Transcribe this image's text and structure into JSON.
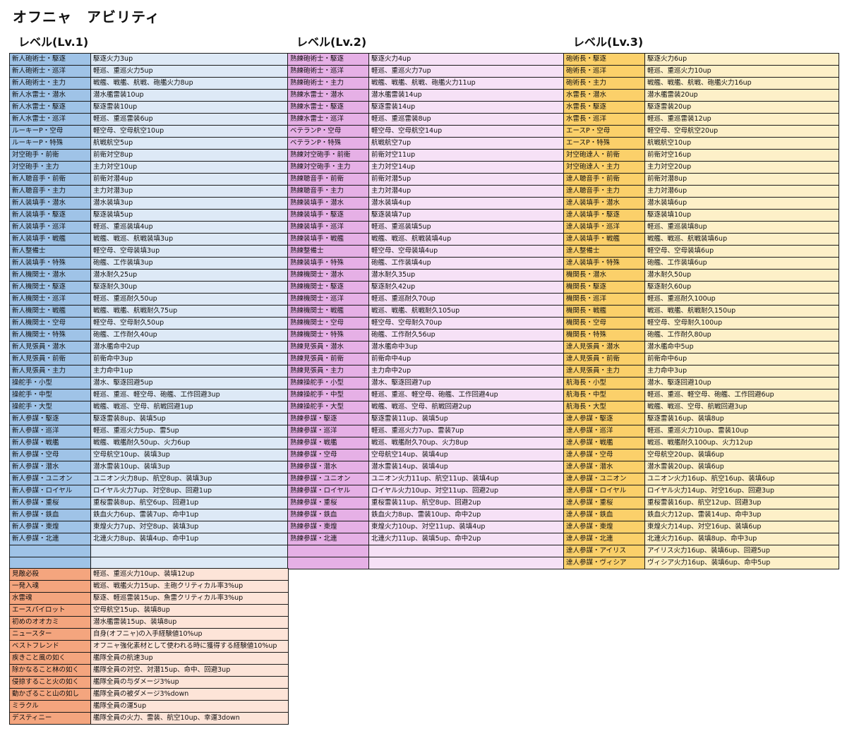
{
  "title": "オフニャ　アビリティ",
  "levels": [
    {
      "heading": "レベル(Lv.1)",
      "rows": [
        [
          "新人砲術士・駆逐",
          "駆逐火力3up"
        ],
        [
          "新人砲術士・巡洋",
          "軽巡、重巡火力5up"
        ],
        [
          "新人砲術士・主力",
          "戦艦、戦艦、航戦、砲艦火力8up"
        ],
        [
          "新人水雷士・潜水",
          "潜水艦雷装10up"
        ],
        [
          "新人水雷士・駆逐",
          "駆逐雷装10up"
        ],
        [
          "新人水雷士・巡洋",
          "軽巡、重巡雷装6up"
        ],
        [
          "ルーキーP・空母",
          "軽空母、空母航空10up"
        ],
        [
          "ルーキーP・特殊",
          "航戦航空5up"
        ],
        [
          "対空砲手・前衛",
          "前衛対空8up"
        ],
        [
          "対空砲手・主力",
          "主力対空10up"
        ],
        [
          "新人聴音手・前衛",
          "前衛対潜4up"
        ],
        [
          "新人聴音手・主力",
          "主力対潜3up"
        ],
        [
          "新人装填手・潜水",
          "潜水装填3up"
        ],
        [
          "新人装填手・駆逐",
          "駆逐装填5up"
        ],
        [
          "新人装填手・巡洋",
          "軽巡、重巡装填4up"
        ],
        [
          "新人装填手・戦艦",
          "戦艦、戦巡、航戦装填3up"
        ],
        [
          "新人整備士",
          "軽空母、空母装填3up"
        ],
        [
          "新人装填手・特殊",
          "砲艦、工作装填3up"
        ],
        [
          "新人機関士・潜水",
          "潜水耐久25up"
        ],
        [
          "新人機関士・駆逐",
          "駆逐耐久30up"
        ],
        [
          "新人機関士・巡洋",
          "軽巡、重巡耐久50up"
        ],
        [
          "新人機関士・戦艦",
          "戦艦、戦艦、航戦耐久75up"
        ],
        [
          "新人機関士・空母",
          "軽空母、空母耐久50up"
        ],
        [
          "新人機関士・特殊",
          "砲艦、工作耐久40up"
        ],
        [
          "新人見張員・潜水",
          "潜水艦命中2up"
        ],
        [
          "新人見張員・前衛",
          "前衛命中3up"
        ],
        [
          "新人見張員・主力",
          "主力命中1up"
        ],
        [
          "操舵手・小型",
          "潜水、駆逐回避5up"
        ],
        [
          "操舵手・中型",
          "軽巡、重巡、軽空母、砲艦、工作回避3up"
        ],
        [
          "操舵手・大型",
          "戦艦、戦巡、空母、航戦回避1up"
        ],
        [
          "新人参謀・駆逐",
          "駆逐雷装8up、装填5up"
        ],
        [
          "新人参謀・巡洋",
          "軽巡、重巡火力5up、雷5up"
        ],
        [
          "新人参謀・戦艦",
          "戦艦、戦艦耐久50up、火力6up"
        ],
        [
          "新人参謀・空母",
          "空母航空10up、装填3up"
        ],
        [
          "新人参謀・潜水",
          "潜水雷装10up、装填3up"
        ],
        [
          "新人参謀・ユニオン",
          "ユニオン火力8up、航空8up、装填3up"
        ],
        [
          "新人参謀・ロイヤル",
          "ロイヤル火力7up、対空8up、回避1up"
        ],
        [
          "新人参謀・重桜",
          "重桜雷装8up、航空6up、回避1up"
        ],
        [
          "新人参謀・鉄血",
          "鉄血火力6up、雷装7up、命中1up"
        ],
        [
          "新人参謀・東煌",
          "東煌火力7up、対空8up、装填3up"
        ],
        [
          "新人参謀・北連",
          "北連火力8up、装填4up、命中1up"
        ],
        [
          "",
          ""
        ],
        [
          "",
          ""
        ]
      ]
    },
    {
      "heading": "レベル(Lv.2)",
      "rows": [
        [
          "熟練砲術士・駆逐",
          "駆逐火力4up"
        ],
        [
          "熟練砲術士・巡洋",
          "軽巡、重巡火力7up"
        ],
        [
          "熟練砲術士・主力",
          "戦艦、戦艦、航戦、砲艦火力11up"
        ],
        [
          "熟練水雷士・潜水",
          "潜水艦雷装14up"
        ],
        [
          "熟練水雷士・駆逐",
          "駆逐雷装14up"
        ],
        [
          "熟練水雷士・巡洋",
          "軽巡、重巡雷装8up"
        ],
        [
          "ベテランP・空母",
          "軽空母、空母航空14up"
        ],
        [
          "ベテランP・特殊",
          "航戦航空7up"
        ],
        [
          "熟練対空砲手・前衛",
          "前衛対空11up"
        ],
        [
          "熟練対空砲手・主力",
          "主力対空14up"
        ],
        [
          "熟練聴音手・前衛",
          "前衛対潜5up"
        ],
        [
          "熟練聴音手・主力",
          "主力対潜4up"
        ],
        [
          "熟練装填手・潜水",
          "潜水装填4up"
        ],
        [
          "熟練装填手・駆逐",
          "駆逐装填7up"
        ],
        [
          "熟練装填手・巡洋",
          "軽巡、重巡装填5up"
        ],
        [
          "熟練装填手・戦艦",
          "戦艦、戦巡、航戦装填4up"
        ],
        [
          "熟練整備士",
          "軽空母、空母装填4up"
        ],
        [
          "熟練装填手・特殊",
          "砲艦、工作装填4up"
        ],
        [
          "熟練機関士・潜水",
          "潜水耐久35up"
        ],
        [
          "熟練機関士・駆逐",
          "駆逐耐久42up"
        ],
        [
          "熟練機関士・巡洋",
          "軽巡、重巡耐久70up"
        ],
        [
          "熟練機関士・戦艦",
          "戦巡、戦艦、航戦耐久105up"
        ],
        [
          "熟練機関士・空母",
          "軽空母、空母耐久70up"
        ],
        [
          "熟練機関士・特殊",
          "砲艦、工作耐久56up"
        ],
        [
          "熟練見張員・潜水",
          "潜水艦命中3up"
        ],
        [
          "熟練見張員・前衛",
          "前衛命中4up"
        ],
        [
          "熟練見張員・主力",
          "主力命中2up"
        ],
        [
          "熟練操舵手・小型",
          "潜水、駆逐回避7up"
        ],
        [
          "熟練操舵手・中型",
          "軽巡、重巡、軽空母、砲艦、工作回避4up"
        ],
        [
          "熟練操舵手・大型",
          "戦艦、戦巡、空母、航戦回避2up"
        ],
        [
          "熟練参謀・駆逐",
          "駆逐雷装11up、装填5up"
        ],
        [
          "熟練参謀・巡洋",
          "軽巡、重巡火力7up、雷装7up"
        ],
        [
          "熟練参謀・戦艦",
          "戦巡、戦艦耐久70up、火力8up"
        ],
        [
          "熟練参謀・空母",
          "空母航空14up、装填4up"
        ],
        [
          "熟練参謀・潜水",
          "潜水雷装14up、装填4up"
        ],
        [
          "熟練参謀・ユニオン",
          "ユニオン火力11up、航空11up、装填4up"
        ],
        [
          "熟練参謀・ロイヤル",
          "ロイヤル火力10up、対空11up、回避2up"
        ],
        [
          "熟練参謀・重桜",
          "重桜雷装11up、航空8up、回避2up"
        ],
        [
          "熟練参謀・鉄血",
          "鉄血火力8up、雷装10up、命中2up"
        ],
        [
          "熟練参謀・東煌",
          "東煌火力10up、対空11up、装填4up"
        ],
        [
          "熟練参謀・北連",
          "北連火力11up、装填5up、命中2up"
        ],
        [
          "",
          ""
        ],
        [
          "",
          ""
        ]
      ]
    },
    {
      "heading": "レベル(Lv.3)",
      "rows": [
        [
          "砲術長・駆逐",
          "駆逐火力6up"
        ],
        [
          "砲術長・巡洋",
          "軽巡、重巡火力10up"
        ],
        [
          "砲術長・主力",
          "戦艦、戦艦、航戦、砲艦火力16up"
        ],
        [
          "水雷長・潜水",
          "潜水艦雷装20up"
        ],
        [
          "水雷長・駆逐",
          "駆逐雷装20up"
        ],
        [
          "水雷長・巡洋",
          "軽巡、重巡雷装12up"
        ],
        [
          "エースP・空母",
          "軽空母、空母航空20up"
        ],
        [
          "エースP・特殊",
          "航戦航空10up"
        ],
        [
          "対空砲達人・前衛",
          "前衛対空16up"
        ],
        [
          "対空砲達人・主力",
          "主力対空20up"
        ],
        [
          "達人聴音手・前衛",
          "前衛対潜8up"
        ],
        [
          "達人聴音手・主力",
          "主力対潜6up"
        ],
        [
          "達人装填手・潜水",
          "潜水装填6up"
        ],
        [
          "達人装填手・駆逐",
          "駆逐装填10up"
        ],
        [
          "達人装填手・巡洋",
          "軽巡、重巡装填8up"
        ],
        [
          "達人装填手・戦艦",
          "戦艦、戦巡、航戦装填6up"
        ],
        [
          "達人整備士",
          "軽空母、空母装填6up"
        ],
        [
          "達人装填手・特殊",
          "砲艦、工作装填6up"
        ],
        [
          "機関長・潜水",
          "潜水耐久50up"
        ],
        [
          "機関長・駆逐",
          "駆逐耐久60up"
        ],
        [
          "機関長・巡洋",
          "軽巡、重巡耐久100up"
        ],
        [
          "機関長・戦艦",
          "戦巡、戦艦、航戦耐久150up"
        ],
        [
          "機関長・空母",
          "軽空母、空母耐久100up"
        ],
        [
          "機関長・特殊",
          "砲艦、工作耐久80up"
        ],
        [
          "達人見張員・潜水",
          "潜水艦命中5up"
        ],
        [
          "達人見張員・前衛",
          "前衛命中6up"
        ],
        [
          "達人見張員・主力",
          "主力命中3up"
        ],
        [
          "航海長・小型",
          "潜水、駆逐回避10up"
        ],
        [
          "航海長・中型",
          "軽巡、重巡、軽空母、砲艦、工作回避6up"
        ],
        [
          "航海長・大型",
          "戦艦、戦巡、空母、航戦回避3up"
        ],
        [
          "達人参謀・駆逐",
          "駆逐雷装16up、装填8up"
        ],
        [
          "達人参謀・巡洋",
          "軽巡、重巡火力10up、雷装10up"
        ],
        [
          "達人参謀・戦艦",
          "戦巡、戦艦耐久100up、火力12up"
        ],
        [
          "達人参謀・空母",
          "空母航空20up、装填6up"
        ],
        [
          "達人参謀・潜水",
          "潜水雷装20up、装填6up"
        ],
        [
          "達人参謀・ユニオン",
          "ユニオン火力16up、航空16up、装填6up"
        ],
        [
          "達人参謀・ロイヤル",
          "ロイヤル火力14up、対空16up、回避3up"
        ],
        [
          "達人参謀・重桜",
          "重桜雷装16up、航空12up、回避3up"
        ],
        [
          "達人参謀・鉄血",
          "鉄血火力12up、雷装14up、命中3up"
        ],
        [
          "達人参謀・東煌",
          "東煌火力14up、対空16up、装填6up"
        ],
        [
          "達人参謀・北連",
          "北連火力16up、装填8up、命中3up"
        ],
        [
          "達人参謀・アイリス",
          "アイリス火力16up、装填6up、回避5up"
        ],
        [
          "達人参謀・ヴィシア",
          "ヴィシア火力16up、装填6up、命中5up"
        ]
      ]
    }
  ],
  "special": [
    [
      "見敵必殺",
      "軽巡、重巡火力10up、装填12up"
    ],
    [
      "一発入魂",
      "戦巡、戦艦火力15up、主砲クリティカル率3%up"
    ],
    [
      "水雷魂",
      "駆逐、軽巡雷装15up、魚雷クリティカル率3%up"
    ],
    [
      "エースパイロット",
      "空母航空15up、装填8up"
    ],
    [
      "初めのオオカミ",
      "潜水艦雷装15up、装填8up"
    ],
    [
      "ニュースター",
      "自身(オフニャ)の入手経験値10%up"
    ],
    [
      "ベストフレンド",
      "オフニャ強化素材として使われる時に獲得する経験値10%up"
    ],
    [
      "疾きこと風の如く",
      "艦隊全員の航速3up"
    ],
    [
      "除かなること林の如く",
      "艦隊全員の対空、対潜15up、命中、回避3up"
    ],
    [
      "侵掠すること火の如く",
      "艦隊全員の与ダメージ3%up"
    ],
    [
      "動かざること山の如し",
      "艦隊全員の被ダメージ3%down"
    ],
    [
      "ミラクル",
      "艦隊全員の運5up"
    ],
    [
      "デスティニー",
      "艦隊全員の火力、雷装、航空10up、幸運3down"
    ]
  ]
}
